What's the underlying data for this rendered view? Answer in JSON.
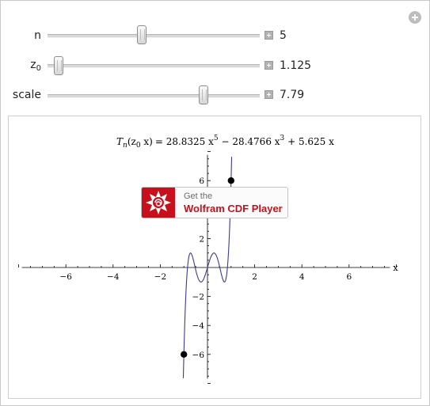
{
  "controls": [
    {
      "label": "n",
      "value": "5"
    },
    {
      "label": "z",
      "label_sub": "0",
      "value": "1.125"
    },
    {
      "label": "scale",
      "value": "7.79"
    }
  ],
  "plot": {
    "formula": {
      "lhs": "T",
      "lhs_sub": "n",
      "args": "(z",
      "args_sub": "0",
      "args_tail": " x)",
      "rhs_a": "= 28.8325 x",
      "exp_a": "5",
      "rhs_b": " − 28.4766 x",
      "exp_b": "3",
      "rhs_c": " + 5.625 x"
    },
    "xlabel": "x"
  },
  "chart_data": {
    "type": "line",
    "title": "",
    "xlabel": "x",
    "ylabel": "",
    "xlim": [
      -8,
      8
    ],
    "ylim": [
      -8,
      8
    ],
    "x_ticks": [
      -6,
      -4,
      -2,
      2,
      4,
      6
    ],
    "y_ticks": [
      -6,
      -4,
      -2,
      2,
      4,
      6
    ],
    "x_tick_labels": [
      "−6",
      "−4",
      "−2",
      "2",
      "4",
      "6"
    ],
    "y_tick_labels": [
      "−6",
      "−4",
      "−2",
      "2",
      "4",
      "6"
    ],
    "series": [
      {
        "function": "28.8325 x^5 - 28.4766 x^3 + 5.625 x",
        "color": "#3b3b8f"
      }
    ],
    "points": [
      {
        "x": -1,
        "y": -6
      },
      {
        "x": 1,
        "y": 6
      }
    ],
    "grid": false,
    "point_color": "#000000"
  },
  "cdf_banner": {
    "line1": "Get the",
    "line2": "Wolfram CDF Player"
  },
  "icons": {
    "corner": "plus-circle-icon",
    "increment": "plus-square-icon",
    "cdf_logo": "wolfram-spikey-icon"
  }
}
